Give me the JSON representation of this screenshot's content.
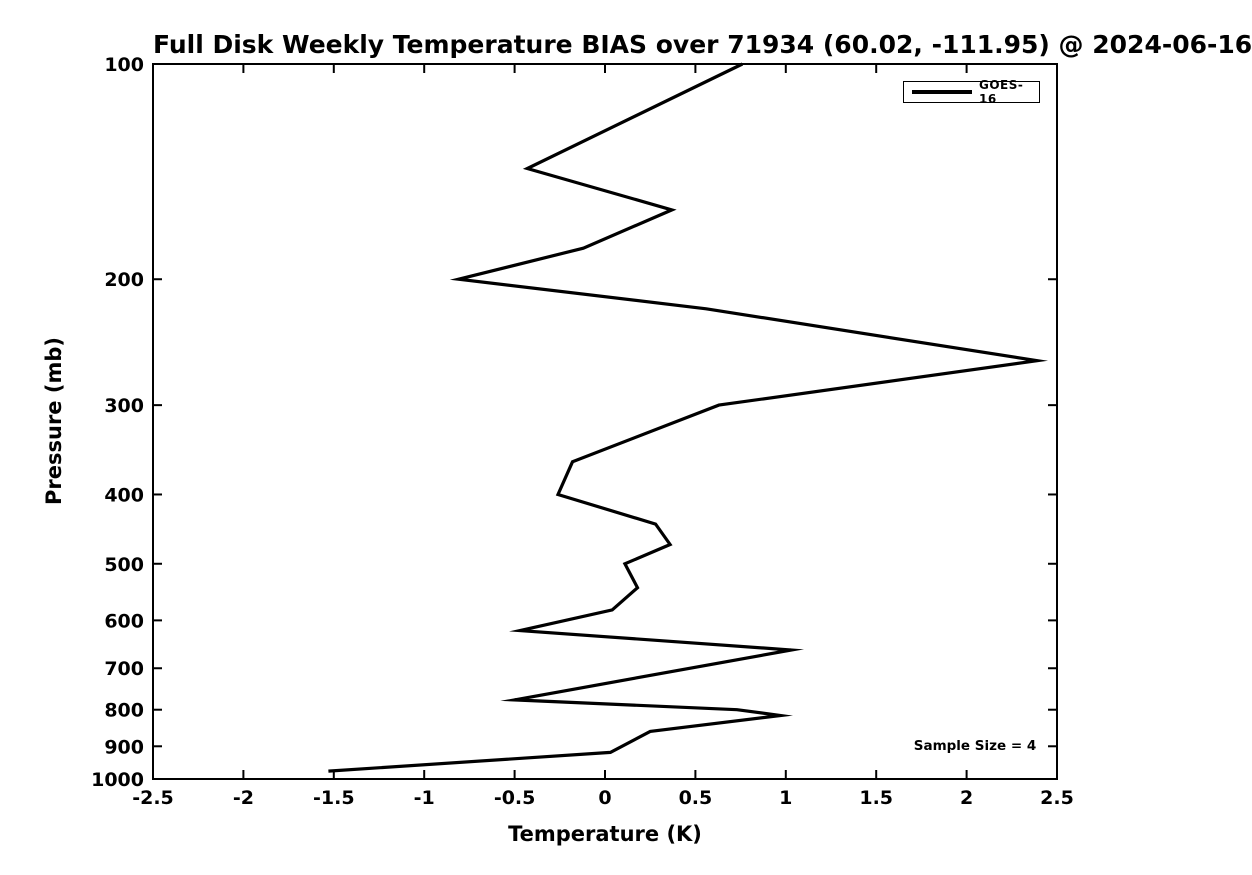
{
  "chart_data": {
    "type": "line",
    "title": "Full Disk Weekly Temperature BIAS over 71934 (60.02, -111.95) @ 2024-06-16",
    "xlabel": "Temperature (K)",
    "ylabel": "Pressure (mb)",
    "xlim": [
      -2.5,
      2.5
    ],
    "ylim": [
      100,
      1000
    ],
    "y_scale": "log",
    "y_inverted": true,
    "grid": false,
    "line_color": "#000000",
    "x_ticks": [
      "-2.5",
      "-2",
      "-1.5",
      "-1",
      "-0.5",
      "0",
      "0.5",
      "1",
      "1.5",
      "2",
      "2.5"
    ],
    "y_ticks": [
      "100",
      "200",
      "300",
      "400",
      "500",
      "600",
      "700",
      "800",
      "900",
      "1000"
    ],
    "legend": {
      "label": "GOES-16",
      "position": "top-right"
    },
    "annotation": {
      "text": "Sample Size = 4",
      "position": "bottom-right"
    },
    "series": [
      {
        "name": "GOES-16",
        "color": "#000000",
        "points": [
          {
            "pressure_mb": 100,
            "bias_k": 0.76
          },
          {
            "pressure_mb": 140,
            "bias_k": -0.43
          },
          {
            "pressure_mb": 160,
            "bias_k": 0.37
          },
          {
            "pressure_mb": 181,
            "bias_k": -0.12
          },
          {
            "pressure_mb": 200,
            "bias_k": -0.81
          },
          {
            "pressure_mb": 220,
            "bias_k": 0.56
          },
          {
            "pressure_mb": 260,
            "bias_k": 2.39
          },
          {
            "pressure_mb": 300,
            "bias_k": 0.63
          },
          {
            "pressure_mb": 360,
            "bias_k": -0.18
          },
          {
            "pressure_mb": 400,
            "bias_k": -0.26
          },
          {
            "pressure_mb": 440,
            "bias_k": 0.28
          },
          {
            "pressure_mb": 470,
            "bias_k": 0.36
          },
          {
            "pressure_mb": 500,
            "bias_k": 0.11
          },
          {
            "pressure_mb": 540,
            "bias_k": 0.18
          },
          {
            "pressure_mb": 580,
            "bias_k": 0.04
          },
          {
            "pressure_mb": 620,
            "bias_k": -0.47
          },
          {
            "pressure_mb": 660,
            "bias_k": 1.03
          },
          {
            "pressure_mb": 775,
            "bias_k": -0.5
          },
          {
            "pressure_mb": 800,
            "bias_k": 0.73
          },
          {
            "pressure_mb": 815,
            "bias_k": 0.97
          },
          {
            "pressure_mb": 858,
            "bias_k": 0.25
          },
          {
            "pressure_mb": 918,
            "bias_k": 0.03
          },
          {
            "pressure_mb": 975,
            "bias_k": -1.53
          }
        ]
      }
    ]
  }
}
